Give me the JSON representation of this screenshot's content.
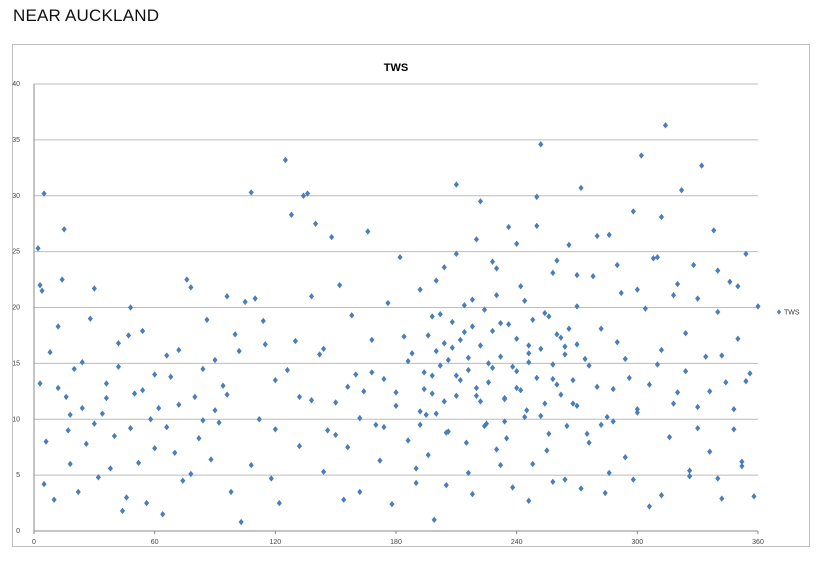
{
  "page": {
    "heading": "NEAR AUCKLAND"
  },
  "colors": {
    "series": "#4a7ebb",
    "grid": "#bcbcbc",
    "axis": "#888888"
  },
  "chart_data": {
    "type": "scatter",
    "title": "TWS",
    "xlabel": "",
    "ylabel": "",
    "xlim": [
      0,
      360
    ],
    "ylim": [
      0,
      40
    ],
    "x_ticks": [
      0,
      60,
      120,
      180,
      240,
      300,
      360
    ],
    "y_ticks": [
      0,
      5,
      10,
      15,
      20,
      25,
      30,
      35,
      40
    ],
    "grid": {
      "horizontal": true,
      "vertical": false
    },
    "legend": {
      "position": "right",
      "entries": [
        "TWS"
      ]
    },
    "marker": "diamond",
    "series": [
      {
        "name": "TWS",
        "points": [
          [
            2,
            25.3
          ],
          [
            3,
            22
          ],
          [
            4,
            21.5
          ],
          [
            5,
            30.2
          ],
          [
            3,
            13.2
          ],
          [
            5,
            4.2
          ],
          [
            6,
            8
          ],
          [
            8,
            16
          ],
          [
            10,
            2.8
          ],
          [
            12,
            18.3
          ],
          [
            14,
            22.5
          ],
          [
            15,
            27
          ],
          [
            16,
            12
          ],
          [
            17,
            9
          ],
          [
            18,
            6
          ],
          [
            20,
            14.5
          ],
          [
            22,
            3.5
          ],
          [
            24,
            11
          ],
          [
            26,
            7.8
          ],
          [
            28,
            19
          ],
          [
            30,
            21.7
          ],
          [
            32,
            4.8
          ],
          [
            34,
            10.5
          ],
          [
            36,
            13.2
          ],
          [
            38,
            5.6
          ],
          [
            40,
            8.5
          ],
          [
            42,
            16.8
          ],
          [
            44,
            1.8
          ],
          [
            46,
            3
          ],
          [
            47,
            17.5
          ],
          [
            48,
            20
          ],
          [
            50,
            12.3
          ],
          [
            52,
            6.1
          ],
          [
            54,
            17.9
          ],
          [
            56,
            2.5
          ],
          [
            58,
            10
          ],
          [
            60,
            14
          ],
          [
            62,
            11
          ],
          [
            64,
            1.5
          ],
          [
            66,
            9.3
          ],
          [
            68,
            13.8
          ],
          [
            70,
            7
          ],
          [
            72,
            16.2
          ],
          [
            74,
            4.5
          ],
          [
            76,
            22.5
          ],
          [
            78,
            21.8
          ],
          [
            80,
            12
          ],
          [
            82,
            8.3
          ],
          [
            84,
            14.5
          ],
          [
            86,
            18.9
          ],
          [
            88,
            6.4
          ],
          [
            90,
            10.8
          ],
          [
            92,
            9.7
          ],
          [
            94,
            13
          ],
          [
            96,
            21
          ],
          [
            98,
            3.5
          ],
          [
            100,
            17.6
          ],
          [
            103,
            0.8
          ],
          [
            105,
            20.5
          ],
          [
            108,
            30.3
          ],
          [
            110,
            20.8
          ],
          [
            112,
            10
          ],
          [
            115,
            16.7
          ],
          [
            118,
            4.7
          ],
          [
            120,
            13.5
          ],
          [
            122,
            2.5
          ],
          [
            125,
            33.2
          ],
          [
            128,
            28.3
          ],
          [
            130,
            17
          ],
          [
            132,
            12
          ],
          [
            134,
            30
          ],
          [
            136,
            30.2
          ],
          [
            138,
            21
          ],
          [
            140,
            27.5
          ],
          [
            142,
            15.8
          ],
          [
            144,
            5.3
          ],
          [
            146,
            9
          ],
          [
            148,
            26.3
          ],
          [
            150,
            11.5
          ],
          [
            152,
            22
          ],
          [
            154,
            2.8
          ],
          [
            156,
            7.5
          ],
          [
            158,
            19.3
          ],
          [
            160,
            14
          ],
          [
            162,
            3.5
          ],
          [
            164,
            12.5
          ],
          [
            166,
            26.8
          ],
          [
            168,
            17.1
          ],
          [
            170,
            9.5
          ],
          [
            172,
            6.3
          ],
          [
            174,
            13.6
          ],
          [
            176,
            20.4
          ],
          [
            178,
            2.4
          ],
          [
            180,
            11.2
          ],
          [
            182,
            24.5
          ],
          [
            184,
            17.4
          ],
          [
            186,
            8.1
          ],
          [
            188,
            15.9
          ],
          [
            190,
            4.3
          ],
          [
            192,
            21.6
          ],
          [
            194,
            12.7
          ],
          [
            196,
            6.8
          ],
          [
            198,
            19.2
          ],
          [
            199,
            1
          ],
          [
            200,
            10.5
          ],
          [
            202,
            14.8
          ],
          [
            204,
            23.6
          ],
          [
            206,
            8.9
          ],
          [
            208,
            16.4
          ],
          [
            210,
            31
          ],
          [
            212,
            13.5
          ],
          [
            214,
            17.8
          ],
          [
            216,
            5.2
          ],
          [
            218,
            20.7
          ],
          [
            220,
            12.1
          ],
          [
            222,
            29.5
          ],
          [
            224,
            9.4
          ],
          [
            226,
            15
          ],
          [
            228,
            24.1
          ],
          [
            230,
            7.3
          ],
          [
            232,
            18.6
          ],
          [
            234,
            11.8
          ],
          [
            236,
            27.2
          ],
          [
            238,
            3.9
          ],
          [
            240,
            14.3
          ],
          [
            242,
            21.9
          ],
          [
            244,
            10.2
          ],
          [
            246,
            16.6
          ],
          [
            248,
            6
          ],
          [
            250,
            29.9
          ],
          [
            252,
            34.6
          ],
          [
            254,
            19.5
          ],
          [
            256,
            8.7
          ],
          [
            258,
            23.1
          ],
          [
            260,
            13.1
          ],
          [
            262,
            17.3
          ],
          [
            264,
            4.6
          ],
          [
            266,
            25.6
          ],
          [
            268,
            11.4
          ],
          [
            270,
            20.1
          ],
          [
            272,
            30.7
          ],
          [
            274,
            15.4
          ],
          [
            276,
            7.9
          ],
          [
            278,
            22.8
          ],
          [
            280,
            12.9
          ],
          [
            282,
            18.1
          ],
          [
            284,
            3.4
          ],
          [
            286,
            26.5
          ],
          [
            288,
            9.8
          ],
          [
            290,
            16.9
          ],
          [
            292,
            21.3
          ],
          [
            294,
            6.6
          ],
          [
            296,
            13.7
          ],
          [
            298,
            28.6
          ],
          [
            300,
            10.9
          ],
          [
            302,
            33.6
          ],
          [
            304,
            19.9
          ],
          [
            306,
            2.2
          ],
          [
            308,
            24.4
          ],
          [
            310,
            14.9
          ],
          [
            312,
            28.1
          ],
          [
            314,
            36.3
          ],
          [
            316,
            8.4
          ],
          [
            318,
            21.1
          ],
          [
            320,
            12.4
          ],
          [
            322,
            30.5
          ],
          [
            324,
            17.7
          ],
          [
            326,
            4.9
          ],
          [
            328,
            23.8
          ],
          [
            330,
            11.1
          ],
          [
            332,
            32.7
          ],
          [
            334,
            15.6
          ],
          [
            336,
            7.1
          ],
          [
            338,
            26.9
          ],
          [
            340,
            19.6
          ],
          [
            342,
            2.9
          ],
          [
            344,
            13.3
          ],
          [
            346,
            22.3
          ],
          [
            348,
            9.1
          ],
          [
            350,
            17.2
          ],
          [
            352,
            5.8
          ],
          [
            354,
            24.8
          ],
          [
            356,
            14.1
          ],
          [
            358,
            3.1
          ],
          [
            360,
            20.1
          ],
          [
            12,
            12.8
          ],
          [
            18,
            10.4
          ],
          [
            24,
            15.1
          ],
          [
            30,
            9.6
          ],
          [
            36,
            11.9
          ],
          [
            42,
            14.7
          ],
          [
            48,
            9.2
          ],
          [
            54,
            12.6
          ],
          [
            60,
            7.4
          ],
          [
            66,
            15.7
          ],
          [
            72,
            11.3
          ],
          [
            78,
            5.1
          ],
          [
            84,
            9.9
          ],
          [
            90,
            15.3
          ],
          [
            96,
            12.2
          ],
          [
            102,
            16.1
          ],
          [
            108,
            5.9
          ],
          [
            114,
            18.8
          ],
          [
            120,
            9.1
          ],
          [
            126,
            14.4
          ],
          [
            132,
            7.6
          ],
          [
            138,
            11.7
          ],
          [
            144,
            16.3
          ],
          [
            150,
            8.6
          ],
          [
            156,
            12.9
          ],
          [
            162,
            10.1
          ],
          [
            168,
            14.2
          ],
          [
            174,
            9.3
          ],
          [
            180,
            12.4
          ],
          [
            186,
            15.2
          ],
          [
            192,
            10.7
          ],
          [
            198,
            13.9
          ],
          [
            204,
            16.8
          ],
          [
            210,
            12.1
          ],
          [
            216,
            15.5
          ],
          [
            222,
            11.6
          ],
          [
            228,
            14.6
          ],
          [
            234,
            9.8
          ],
          [
            240,
            12.8
          ],
          [
            246,
            15.9
          ],
          [
            252,
            10.3
          ],
          [
            258,
            13.6
          ],
          [
            264,
            16.5
          ],
          [
            270,
            11.2
          ],
          [
            276,
            14.8
          ],
          [
            282,
            9.5
          ],
          [
            288,
            12.7
          ],
          [
            294,
            15.4
          ],
          [
            300,
            10.6
          ],
          [
            306,
            13.1
          ],
          [
            312,
            16.2
          ],
          [
            318,
            11.4
          ],
          [
            324,
            14.3
          ],
          [
            330,
            9.2
          ],
          [
            336,
            12.5
          ],
          [
            342,
            15.7
          ],
          [
            348,
            10.9
          ],
          [
            354,
            13.4
          ],
          [
            192,
            9.5
          ],
          [
            194,
            14.2
          ],
          [
            196,
            17.5
          ],
          [
            198,
            12.3
          ],
          [
            200,
            16.1
          ],
          [
            202,
            19.4
          ],
          [
            204,
            11.6
          ],
          [
            206,
            15.3
          ],
          [
            208,
            18.7
          ],
          [
            210,
            13.9
          ],
          [
            212,
            17.1
          ],
          [
            214,
            20.2
          ],
          [
            216,
            14.4
          ],
          [
            218,
            18.3
          ],
          [
            220,
            12.8
          ],
          [
            222,
            16.6
          ],
          [
            224,
            19.8
          ],
          [
            226,
            13.3
          ],
          [
            228,
            17.9
          ],
          [
            230,
            21.1
          ],
          [
            232,
            15.6
          ],
          [
            234,
            11.9
          ],
          [
            236,
            18.5
          ],
          [
            238,
            14.7
          ],
          [
            240,
            17.2
          ],
          [
            242,
            12.6
          ],
          [
            244,
            20.6
          ],
          [
            246,
            15.1
          ],
          [
            248,
            18.9
          ],
          [
            250,
            13.7
          ],
          [
            252,
            16.3
          ],
          [
            254,
            11.4
          ],
          [
            256,
            19.2
          ],
          [
            258,
            14.9
          ],
          [
            260,
            17.6
          ],
          [
            262,
            12.2
          ],
          [
            264,
            15.8
          ],
          [
            266,
            18.1
          ],
          [
            268,
            13.5
          ],
          [
            270,
            16.7
          ],
          [
            195,
            10.4
          ],
          [
            205,
            8.8
          ],
          [
            215,
            7.9
          ],
          [
            225,
            9.6
          ],
          [
            235,
            8.3
          ],
          [
            245,
            10.8
          ],
          [
            255,
            7.2
          ],
          [
            265,
            9.4
          ],
          [
            275,
            8.7
          ],
          [
            285,
            10.2
          ],
          [
            200,
            22.4
          ],
          [
            210,
            24.8
          ],
          [
            220,
            26.1
          ],
          [
            230,
            23.5
          ],
          [
            240,
            25.7
          ],
          [
            250,
            27.3
          ],
          [
            260,
            24.2
          ],
          [
            270,
            22.9
          ],
          [
            280,
            26.4
          ],
          [
            290,
            23.8
          ],
          [
            300,
            21.6
          ],
          [
            310,
            24.5
          ],
          [
            320,
            22.1
          ],
          [
            330,
            20.8
          ],
          [
            340,
            23.3
          ],
          [
            350,
            21.9
          ],
          [
            190,
            5.6
          ],
          [
            205,
            4.1
          ],
          [
            218,
            3.3
          ],
          [
            232,
            5.9
          ],
          [
            246,
            2.7
          ],
          [
            258,
            4.4
          ],
          [
            272,
            3.8
          ],
          [
            286,
            5.2
          ],
          [
            298,
            4.6
          ],
          [
            312,
            3.2
          ],
          [
            326,
            5.4
          ],
          [
            340,
            4.7
          ],
          [
            352,
            6.2
          ]
        ]
      }
    ]
  }
}
